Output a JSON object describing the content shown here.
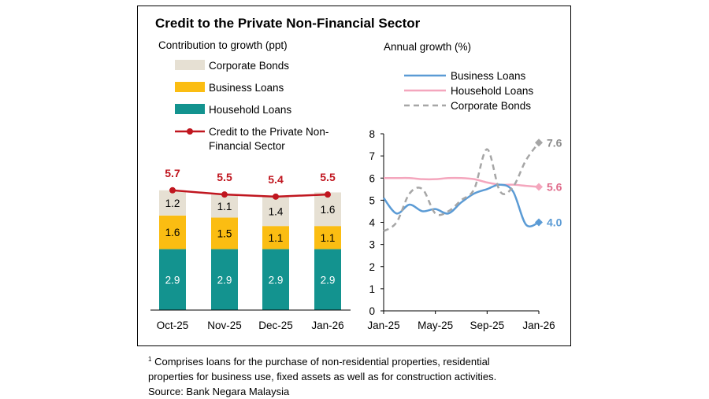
{
  "header": {
    "title": "Credit to the Private Non-Financial Sector",
    "left_subtitle": "Contribution to growth (ppt)",
    "right_subtitle": "Annual growth (%)"
  },
  "footnote": {
    "marker": "1",
    "lines": [
      "Comprises loans for the purchase of non-residential properties, residential",
      "properties for business use, fixed assets as well as for construction activities.",
      "Source: Bank Negara Malaysia"
    ]
  },
  "colors": {
    "household_loans": "#13938f",
    "business_loans": "#fbbd12",
    "corporate_bonds": "#e6e0d3",
    "credit_line": "#c0161f",
    "business_line": "#5b9bd5",
    "household_line": "#f4a6bd",
    "bonds_line": "#a6a6a6"
  },
  "chart_data": [
    {
      "type": "bar",
      "stacked": true,
      "categories": [
        "Oct-25",
        "Nov-25",
        "Dec-25",
        "Jan-26"
      ],
      "series": [
        {
          "name": "Household Loans",
          "values": [
            2.9,
            2.9,
            2.9,
            2.9
          ],
          "color": "#13938f"
        },
        {
          "name": "Business Loans",
          "values": [
            1.6,
            1.5,
            1.1,
            1.1
          ],
          "color": "#fbbd12"
        },
        {
          "name": "Corporate Bonds",
          "values": [
            1.2,
            1.1,
            1.4,
            1.6
          ],
          "color": "#e6e0d3"
        }
      ],
      "line_series": {
        "name": "Credit to the Private Non-Financial Sector",
        "values": [
          5.7,
          5.5,
          5.4,
          5.5
        ],
        "color": "#c0161f"
      },
      "legend": [
        "Corporate Bonds",
        "Business Loans",
        "Household Loans",
        "Credit to the Private Non-Financial Sector"
      ],
      "legend_position": "top-left",
      "ylim": [
        0,
        6.6
      ]
    },
    {
      "type": "line",
      "x_ticks": [
        "Jan-25",
        "May-25",
        "Sep-25",
        "Jan-26"
      ],
      "ylim": [
        0,
        8
      ],
      "y_ticks": [
        0,
        1,
        2,
        3,
        4,
        5,
        6,
        7,
        8
      ],
      "legend_position": "top",
      "series": [
        {
          "name": "Business Loans",
          "color": "#5b9bd5",
          "style": "solid",
          "values": [
            5.1,
            4.4,
            4.8,
            4.5,
            4.6,
            4.4,
            4.9,
            5.3,
            5.5,
            5.7,
            5.4,
            3.9,
            4.0
          ],
          "end_label": "4.0"
        },
        {
          "name": "Household Loans",
          "color": "#f4a6bd",
          "style": "solid",
          "values": [
            6.0,
            6.0,
            6.0,
            5.95,
            5.95,
            6.0,
            6.0,
            5.95,
            5.8,
            5.7,
            5.7,
            5.65,
            5.6
          ],
          "end_label": "5.6"
        },
        {
          "name": "Corporate Bonds",
          "color": "#a6a6a6",
          "style": "dashed",
          "values": [
            3.6,
            4.0,
            5.3,
            5.5,
            4.4,
            4.5,
            5.0,
            5.5,
            7.3,
            5.4,
            5.6,
            6.8,
            7.6
          ],
          "end_label": "7.6"
        }
      ]
    }
  ]
}
